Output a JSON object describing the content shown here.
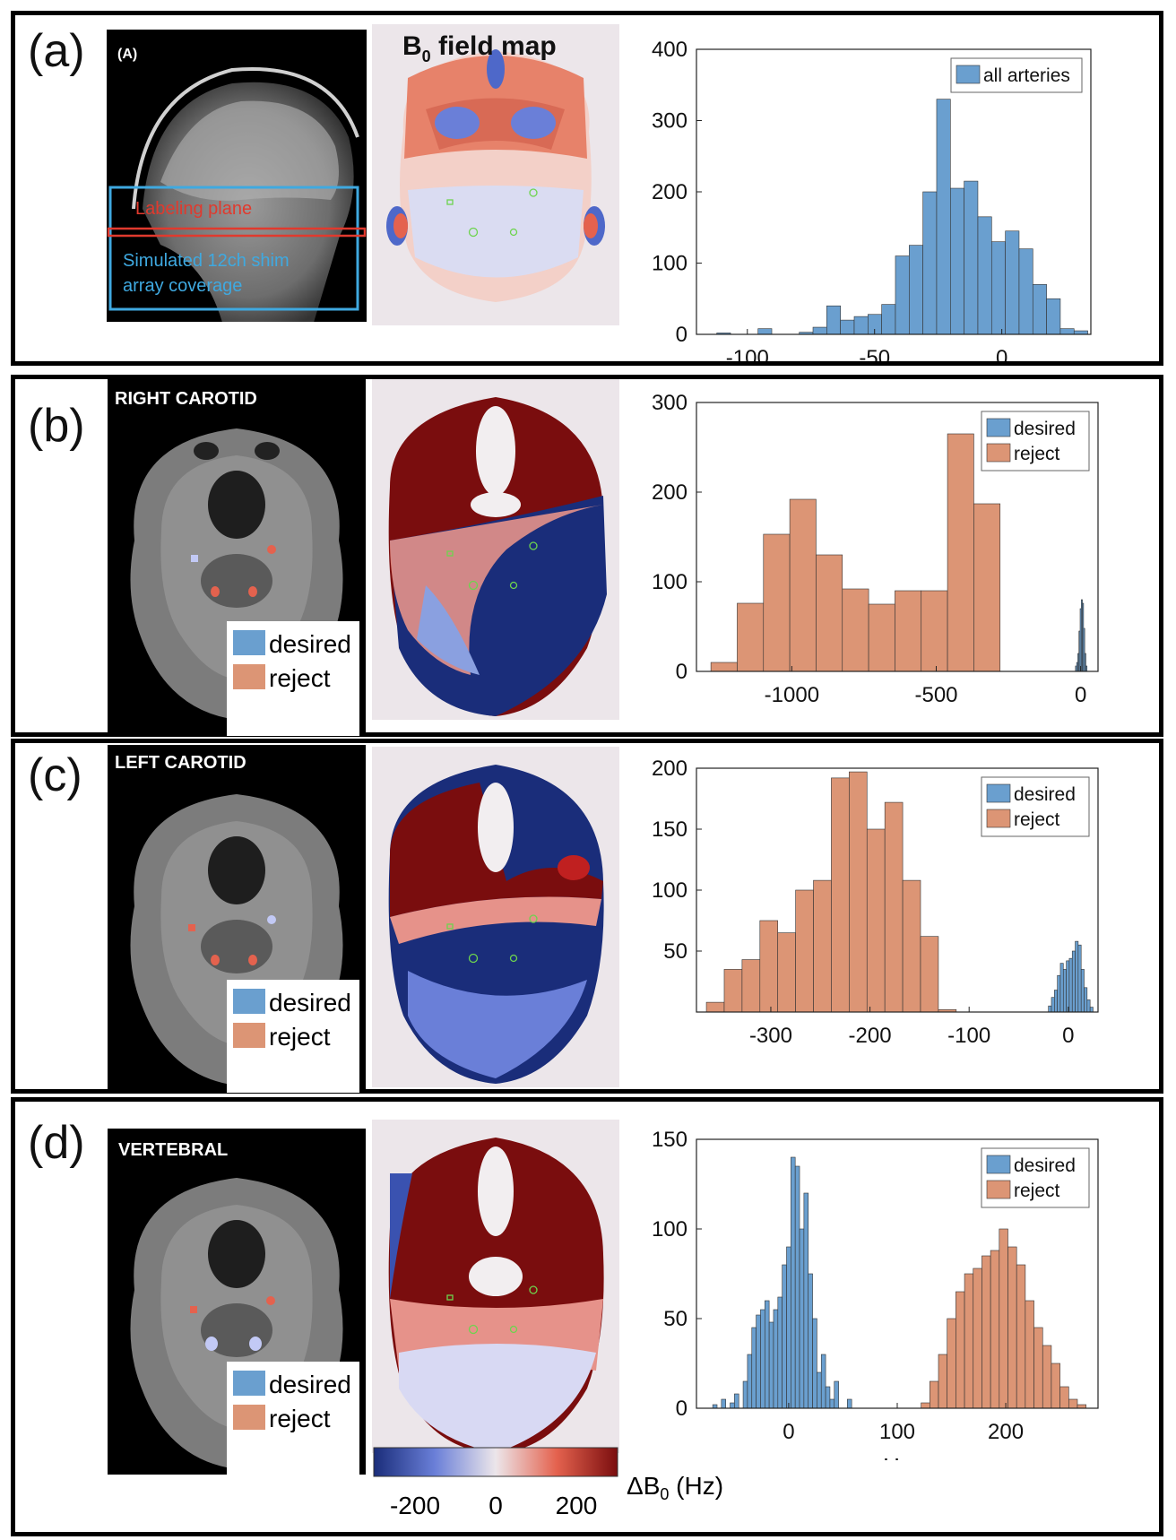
{
  "panels": [
    {
      "label": "(a)",
      "mri_label": "(A)",
      "field_title": "B",
      "field_sub": "0",
      "field_rest": " field map",
      "labeling_plane": "Labeling plane",
      "shim_line1": "Simulated 12ch shim",
      "shim_line2": "array coverage"
    },
    {
      "label": "(b)",
      "mri_label": "RIGHT CAROTID",
      "legend_desired": "desired",
      "legend_reject": "reject"
    },
    {
      "label": "(c)",
      "mri_label": "LEFT CAROTID",
      "legend_desired": "desired",
      "legend_reject": "reject"
    },
    {
      "label": "(d)",
      "mri_label": "VERTEBRAL",
      "legend_desired": "desired",
      "legend_reject": "reject"
    }
  ],
  "colorbar": {
    "ticks": [
      "-200",
      "0",
      "200"
    ],
    "label": "ΔB",
    "label_sub": "0",
    "label_rest": " (Hz)"
  },
  "colors": {
    "desired": "#6a9fcf",
    "reject": "#dc9575",
    "edge": "#333333"
  },
  "chart_data": [
    {
      "type": "bar",
      "name": "histogram-a",
      "xlim": [
        -120,
        35
      ],
      "ylim": [
        0,
        400
      ],
      "xticks": [
        -100,
        -50,
        0
      ],
      "yticks": [
        0,
        100,
        200,
        300,
        400
      ],
      "xlabel": "",
      "legend_position": "top-right",
      "series": [
        {
          "name": "all arteries",
          "color": "desired",
          "binwidth": 5.4,
          "x": [
            -112,
            -106.6,
            -101.2,
            -95.8,
            -90.4,
            -85,
            -79.6,
            -74.2,
            -68.8,
            -63.4,
            -58,
            -52.6,
            -47.2,
            -41.8,
            -36.4,
            -31,
            -25.6,
            -20.2,
            -14.8,
            -9.4,
            -4,
            1.4,
            6.8,
            12.2,
            17.6,
            23,
            28.4
          ],
          "values": [
            2,
            0,
            0,
            8,
            0,
            0,
            3,
            10,
            40,
            20,
            25,
            28,
            42,
            110,
            125,
            200,
            330,
            205,
            215,
            165,
            130,
            145,
            120,
            70,
            50,
            8,
            5
          ]
        }
      ]
    },
    {
      "type": "bar",
      "name": "histogram-b",
      "xlim": [
        -1330,
        60
      ],
      "ylim": [
        0,
        300
      ],
      "xticks": [
        -1000,
        -500,
        0
      ],
      "yticks": [
        0,
        100,
        200,
        300
      ],
      "xlabel": "",
      "legend_position": "top-right",
      "series": [
        {
          "name": "reject",
          "color": "reject",
          "binwidth": 91,
          "x": [
            -1280,
            -1189,
            -1098,
            -1007,
            -916,
            -825,
            -734,
            -643,
            -552,
            -461,
            -370,
            -279
          ],
          "values": [
            10,
            76,
            153,
            192,
            130,
            92,
            75,
            90,
            90,
            265,
            187,
            0
          ]
        },
        {
          "name": "desired",
          "color": "desired",
          "binwidth": 4,
          "x": [
            -18,
            -14,
            -10,
            -6,
            -2,
            2,
            6,
            10,
            14,
            18
          ],
          "values": [
            6,
            10,
            20,
            45,
            70,
            80,
            76,
            48,
            20,
            6
          ]
        }
      ]
    },
    {
      "type": "bar",
      "name": "histogram-c",
      "xlim": [
        -375,
        30
      ],
      "ylim": [
        0,
        200
      ],
      "xticks": [
        -300,
        -200,
        -100,
        0
      ],
      "yticks": [
        50,
        100,
        150,
        200
      ],
      "xlabel": "",
      "legend_position": "top-right",
      "series": [
        {
          "name": "reject",
          "color": "reject",
          "binwidth": 18,
          "x": [
            -365,
            -347,
            -329,
            -311,
            -293,
            -275,
            -257,
            -239,
            -221,
            -203,
            -185,
            -167,
            -149,
            -131,
            -113,
            -95,
            -77,
            -59
          ],
          "values": [
            8,
            35,
            43,
            75,
            65,
            100,
            108,
            192,
            197,
            150,
            172,
            108,
            62,
            2,
            0,
            0,
            0,
            0
          ],
          "trim": 14
        },
        {
          "name": "desired",
          "color": "desired",
          "binwidth": 3,
          "x": [
            -20,
            -17,
            -14,
            -11,
            -8,
            -5,
            -2,
            1,
            4,
            7,
            10,
            13,
            16,
            19,
            22
          ],
          "values": [
            5,
            12,
            18,
            30,
            40,
            35,
            42,
            44,
            50,
            58,
            55,
            35,
            20,
            10,
            4
          ]
        }
      ]
    },
    {
      "type": "bar",
      "name": "histogram-d",
      "xlim": [
        -85,
        285
      ],
      "ylim": [
        0,
        150
      ],
      "xticks": [
        0,
        100,
        200
      ],
      "yticks": [
        0,
        50,
        100,
        150
      ],
      "xlabel": "Hz",
      "legend_position": "top-right",
      "series": [
        {
          "name": "desired",
          "color": "desired",
          "binwidth": 4,
          "x": [
            -70,
            -66,
            -62,
            -58,
            -54,
            -50,
            -46,
            -42,
            -38,
            -34,
            -30,
            -26,
            -22,
            -18,
            -14,
            -10,
            -6,
            -2,
            2,
            6,
            10,
            14,
            18,
            22,
            26,
            30,
            34,
            38,
            42,
            46,
            50,
            54,
            58
          ],
          "values": [
            2,
            0,
            5,
            0,
            3,
            8,
            0,
            15,
            30,
            45,
            52,
            55,
            60,
            48,
            55,
            62,
            80,
            90,
            140,
            135,
            100,
            120,
            75,
            50,
            20,
            30,
            12,
            5,
            15,
            0,
            0,
            5,
            0
          ],
          "trim": 6
        },
        {
          "name": "reject",
          "color": "reject",
          "binwidth": 8,
          "x": [
            122,
            130,
            138,
            146,
            154,
            162,
            170,
            178,
            186,
            194,
            202,
            210,
            218,
            226,
            234,
            242,
            250,
            258,
            266
          ],
          "values": [
            3,
            15,
            30,
            50,
            65,
            75,
            78,
            85,
            88,
            100,
            90,
            80,
            60,
            45,
            35,
            25,
            12,
            5,
            2
          ]
        }
      ]
    }
  ]
}
